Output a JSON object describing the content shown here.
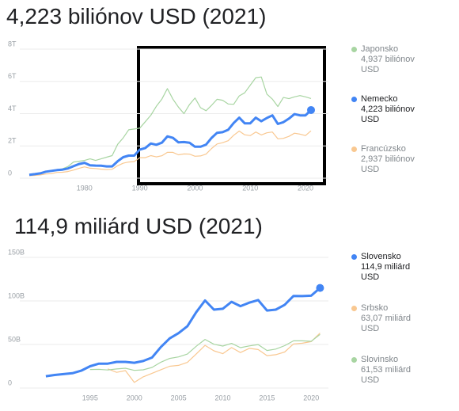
{
  "chart_data": [
    {
      "type": "line",
      "title": "4,223 biliónov USD (2021)",
      "x": [
        1970,
        1971,
        1972,
        1973,
        1974,
        1975,
        1976,
        1977,
        1978,
        1979,
        1980,
        1981,
        1982,
        1983,
        1984,
        1985,
        1986,
        1987,
        1988,
        1989,
        1990,
        1991,
        1992,
        1993,
        1994,
        1995,
        1996,
        1997,
        1998,
        1999,
        2000,
        2001,
        2002,
        2003,
        2004,
        2005,
        2006,
        2007,
        2008,
        2009,
        2010,
        2011,
        2012,
        2013,
        2014,
        2015,
        2016,
        2017,
        2018,
        2019,
        2020,
        2021
      ],
      "xlim": [
        1969,
        2022
      ],
      "xticks": [
        1980,
        1990,
        2000,
        2010,
        2020
      ],
      "ylim": [
        0,
        8
      ],
      "yticks": [
        0,
        {
          "value": 2,
          "label": "2T"
        },
        {
          "value": 4,
          "label": "4T"
        },
        {
          "value": 6,
          "label": "6T"
        },
        {
          "value": 8,
          "label": "8T"
        }
      ],
      "grid": true,
      "series": [
        {
          "name": "Japonsko",
          "legend_value": "4,937 biliónov USD",
          "color": "#a8d5a2",
          "bold": false,
          "values": [
            0.21,
            0.24,
            0.32,
            0.43,
            0.48,
            0.52,
            0.58,
            0.72,
            1.0,
            1.05,
            1.1,
            1.2,
            1.1,
            1.2,
            1.3,
            1.4,
            2.1,
            2.5,
            3.0,
            3.05,
            3.1,
            3.5,
            3.9,
            4.45,
            4.9,
            5.55,
            4.9,
            4.4,
            4.0,
            4.56,
            4.97,
            4.37,
            4.18,
            4.52,
            4.89,
            4.83,
            4.6,
            4.58,
            5.1,
            5.29,
            5.76,
            6.23,
            6.27,
            5.21,
            4.9,
            4.44,
            5.0,
            4.93,
            5.04,
            5.12,
            5.04,
            4.937
          ]
        },
        {
          "name": "Nemecko",
          "legend_value": "4,223 biliónov USD",
          "color": "#4285f4",
          "bold": true,
          "values": [
            0.21,
            0.25,
            0.3,
            0.4,
            0.45,
            0.5,
            0.53,
            0.6,
            0.74,
            0.88,
            0.95,
            0.8,
            0.78,
            0.77,
            0.73,
            0.73,
            1.05,
            1.3,
            1.4,
            1.4,
            1.77,
            1.87,
            2.15,
            2.07,
            2.2,
            2.59,
            2.5,
            2.22,
            2.24,
            2.2,
            1.95,
            1.95,
            2.08,
            2.5,
            2.81,
            2.85,
            3.0,
            3.42,
            3.75,
            3.4,
            3.4,
            3.75,
            3.53,
            3.73,
            3.89,
            3.36,
            3.47,
            3.69,
            3.97,
            3.89,
            3.89,
            4.223
          ]
        },
        {
          "name": "Francúzsko",
          "legend_value": "2,937 biliónov USD",
          "color": "#f9c891",
          "bold": false,
          "values": [
            0.15,
            0.17,
            0.2,
            0.26,
            0.28,
            0.36,
            0.37,
            0.41,
            0.5,
            0.61,
            0.7,
            0.62,
            0.6,
            0.56,
            0.53,
            0.55,
            0.77,
            0.93,
            1.0,
            1.03,
            1.27,
            1.27,
            1.4,
            1.32,
            1.39,
            1.6,
            1.6,
            1.45,
            1.5,
            1.49,
            1.36,
            1.38,
            1.49,
            1.84,
            2.12,
            2.2,
            2.32,
            2.66,
            2.92,
            2.69,
            2.64,
            2.86,
            2.68,
            2.81,
            2.86,
            2.44,
            2.47,
            2.59,
            2.79,
            2.73,
            2.64,
            2.937
          ]
        }
      ]
    },
    {
      "type": "line",
      "title": "114,9 miliárd USD (2021)",
      "x": [
        1990,
        1991,
        1992,
        1993,
        1994,
        1995,
        1996,
        1997,
        1998,
        1999,
        2000,
        2001,
        2002,
        2003,
        2004,
        2005,
        2006,
        2007,
        2008,
        2009,
        2010,
        2011,
        2012,
        2013,
        2014,
        2015,
        2016,
        2017,
        2018,
        2019,
        2020,
        2021
      ],
      "xlim": [
        1987.5,
        2021.5
      ],
      "xticks": [
        1995,
        2000,
        2005,
        2010,
        2015,
        2020
      ],
      "ylim": [
        0,
        150
      ],
      "yticks": [
        0,
        {
          "value": 50,
          "label": "50B"
        },
        {
          "value": 100,
          "label": "100B"
        },
        {
          "value": 150,
          "label": "150B"
        }
      ],
      "grid": true,
      "series": [
        {
          "name": "Slovensko",
          "legend_value": "114,9 miliárd USD",
          "color": "#4285f4",
          "bold": true,
          "values": [
            13.5,
            15,
            16,
            17,
            19.9,
            25,
            28,
            28,
            30,
            30,
            29,
            31,
            35,
            47,
            57,
            63,
            71,
            87,
            100.5,
            90,
            91,
            99,
            94,
            98,
            101,
            89,
            90,
            95.5,
            105.7,
            105.5,
            106,
            114.9
          ]
        },
        {
          "name": "Srbsko",
          "legend_value": "63,07 miliárd USD",
          "color": "#f9c891",
          "bold": false,
          "values": [
            null,
            null,
            null,
            null,
            null,
            null,
            null,
            22,
            18,
            20,
            6.5,
            12.8,
            16.9,
            21,
            25,
            26,
            29.5,
            39,
            49,
            42.7,
            39.5,
            46.5,
            40.7,
            45.5,
            44.2,
            37.2,
            38.3,
            41.4,
            50.6,
            51.5,
            53.3,
            63.07
          ]
        },
        {
          "name": "Slovinsko",
          "legend_value": "61,53 miliárd USD",
          "color": "#a8d5a2",
          "bold": false,
          "values": [
            null,
            null,
            null,
            null,
            null,
            21.3,
            21.5,
            20.7,
            21.9,
            22.7,
            20.3,
            20.9,
            23.6,
            29.6,
            34.0,
            35.7,
            39.0,
            47.9,
            55.8,
            50.3,
            48.2,
            51.3,
            46.4,
            48.4,
            49.9,
            43.1,
            44.7,
            48.6,
            54.2,
            54.2,
            53.6,
            61.53
          ]
        }
      ]
    }
  ]
}
